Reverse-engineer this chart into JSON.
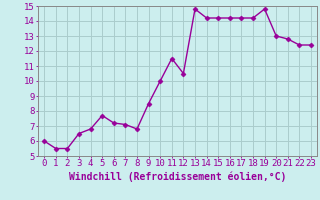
{
  "x": [
    0,
    1,
    2,
    3,
    4,
    5,
    6,
    7,
    8,
    9,
    10,
    11,
    12,
    13,
    14,
    15,
    16,
    17,
    18,
    19,
    20,
    21,
    22,
    23
  ],
  "y": [
    6.0,
    5.5,
    5.5,
    6.5,
    6.8,
    7.7,
    7.2,
    7.1,
    6.8,
    8.5,
    10.0,
    11.5,
    10.5,
    14.8,
    14.2,
    14.2,
    14.2,
    14.2,
    14.2,
    14.8,
    13.0,
    12.8,
    12.4,
    12.4
  ],
  "line_color": "#990099",
  "marker": "D",
  "marker_size": 2.5,
  "line_width": 1.0,
  "bg_color": "#cceeee",
  "grid_color": "#aacccc",
  "xlabel": "Windchill (Refroidissement éolien,°C)",
  "xlabel_fontsize": 7,
  "tick_fontsize": 6.5,
  "xlim": [
    -0.5,
    23.5
  ],
  "ylim": [
    5,
    15
  ],
  "yticks": [
    5,
    6,
    7,
    8,
    9,
    10,
    11,
    12,
    13,
    14,
    15
  ],
  "xticks": [
    0,
    1,
    2,
    3,
    4,
    5,
    6,
    7,
    8,
    9,
    10,
    11,
    12,
    13,
    14,
    15,
    16,
    17,
    18,
    19,
    20,
    21,
    22,
    23
  ],
  "tick_color": "#990099",
  "label_color": "#990099",
  "spine_color": "#888888"
}
